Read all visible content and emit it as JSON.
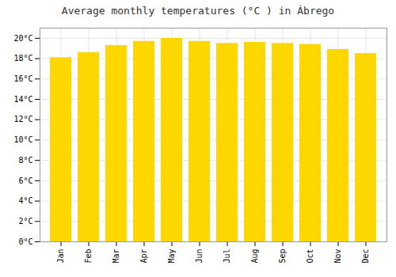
{
  "chart_data": {
    "type": "bar",
    "title": "Average monthly temperatures (°C ) in Ábrego",
    "categories": [
      "Jan",
      "Feb",
      "Mar",
      "Apr",
      "May",
      "Jun",
      "Jul",
      "Aug",
      "Sep",
      "Oct",
      "Nov",
      "Dec"
    ],
    "values": [
      18.1,
      18.6,
      19.3,
      19.7,
      20.0,
      19.7,
      19.5,
      19.6,
      19.5,
      19.4,
      18.9,
      18.5
    ],
    "color": "#FFD700",
    "ylim": [
      0,
      21
    ],
    "yticks": [
      {
        "value": 0,
        "label": "0°C"
      },
      {
        "value": 2,
        "label": "2°C"
      },
      {
        "value": 4,
        "label": "4°C"
      },
      {
        "value": 6,
        "label": "6°C"
      },
      {
        "value": 8,
        "label": "8°C"
      },
      {
        "value": 10,
        "label": "10°C"
      },
      {
        "value": 12,
        "label": "12°C"
      },
      {
        "value": 14,
        "label": "14°C"
      },
      {
        "value": 16,
        "label": "16°C"
      },
      {
        "value": 18,
        "label": "18°C"
      },
      {
        "value": 20,
        "label": "20°C"
      }
    ],
    "grid": true
  }
}
